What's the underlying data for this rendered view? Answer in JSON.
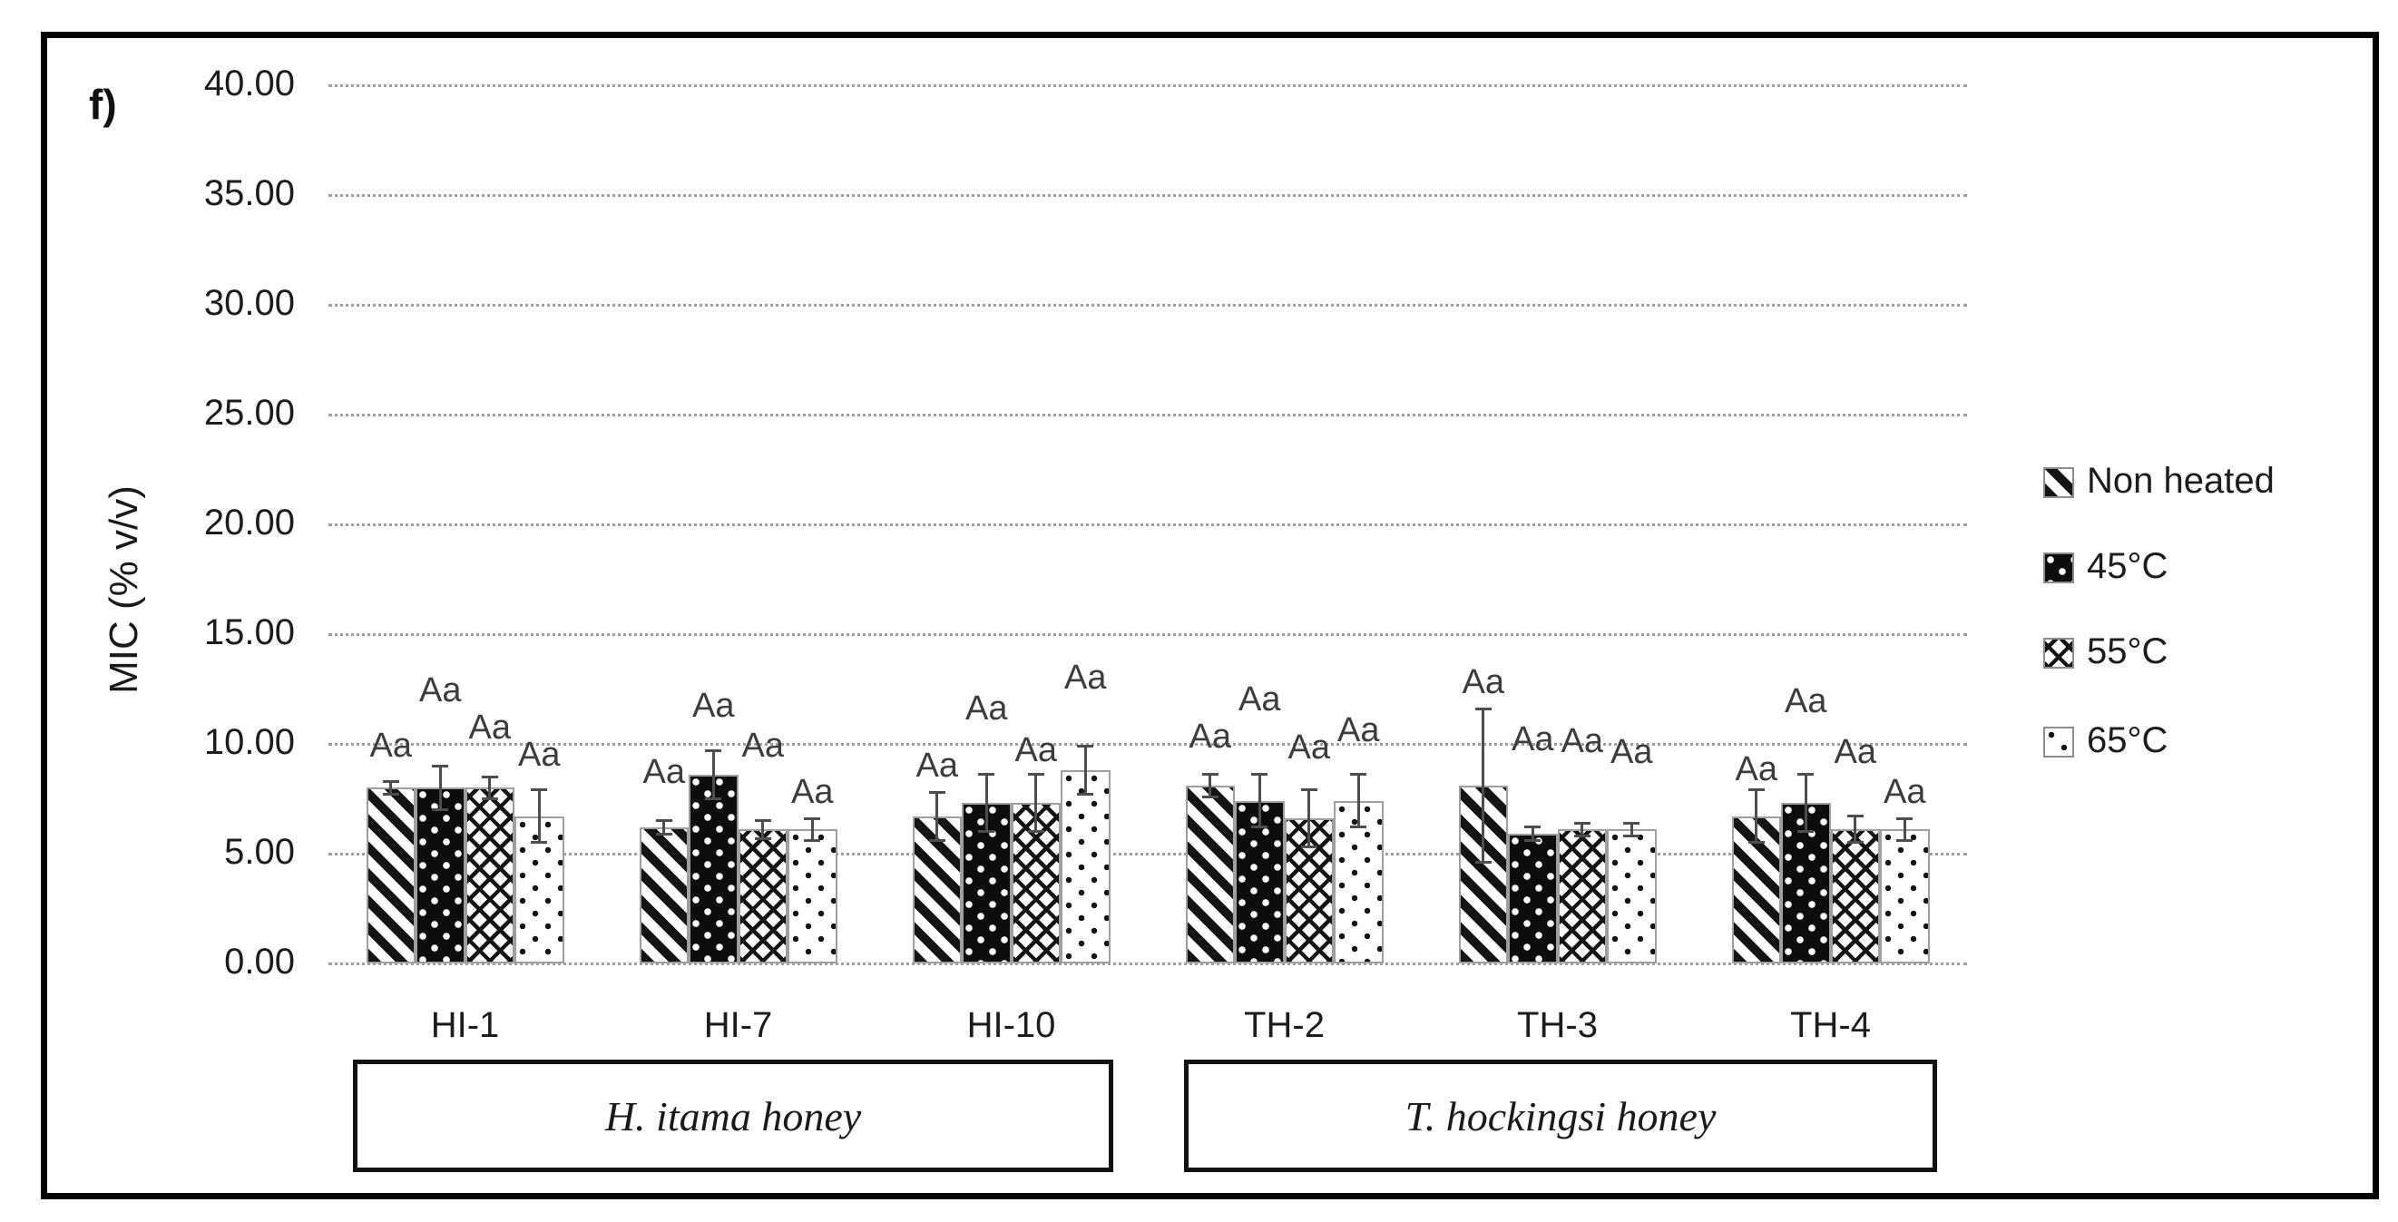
{
  "panel_label": "f)",
  "colors": {
    "background": "#ffffff",
    "border": "#000000",
    "grid": "#9e9e9e",
    "bar_border": "#9f9f9f",
    "bar_ink": "#141414",
    "error_bar": "#4d4d4d",
    "text": "#1c1c1c"
  },
  "chart_data": {
    "type": "bar",
    "title": "",
    "xlabel": "",
    "ylabel": "MIC (% v/v)",
    "ylim": [
      0,
      40
    ],
    "ytick_step": 5,
    "ytick_labels": [
      "0.00",
      "5.00",
      "10.00",
      "15.00",
      "20.00",
      "25.00",
      "30.00",
      "35.00",
      "40.00"
    ],
    "grid": "horizontal-dotted",
    "legend_position": "right",
    "categories": [
      "HI-1",
      "HI-7",
      "HI-10",
      "TH-2",
      "TH-3",
      "TH-4"
    ],
    "category_groups": [
      {
        "label": "H. itama honey",
        "categories": [
          "HI-1",
          "HI-7",
          "HI-10"
        ]
      },
      {
        "label": "T. hockingsi honey",
        "categories": [
          "TH-2",
          "TH-3",
          "TH-4"
        ]
      }
    ],
    "series": [
      {
        "name": "Non heated",
        "pattern": "diagonal-stripes",
        "values": [
          8.0,
          6.2,
          6.7,
          8.1,
          8.1,
          6.7
        ],
        "errors": [
          0.3,
          0.3,
          1.1,
          0.5,
          3.5,
          1.2
        ],
        "sig_labels": [
          "Aa",
          "Aa",
          "Aa",
          "Aa",
          "Aa",
          "Aa"
        ],
        "sig_label_y": [
          9.8,
          8.6,
          8.9,
          10.2,
          12.7,
          8.7
        ]
      },
      {
        "name": "45°C",
        "pattern": "black-white-dots",
        "values": [
          8.0,
          8.6,
          7.3,
          7.4,
          5.9,
          7.3
        ],
        "errors": [
          1.0,
          1.1,
          1.3,
          1.2,
          0.3,
          1.3
        ],
        "sig_labels": [
          "Aa",
          "Aa",
          "Aa",
          "Aa",
          "Aa",
          "Aa"
        ],
        "sig_label_y": [
          12.3,
          11.6,
          11.5,
          11.9,
          10.1,
          11.8
        ]
      },
      {
        "name": "55°C",
        "pattern": "crosshatch",
        "values": [
          8.0,
          6.1,
          7.3,
          6.6,
          6.1,
          6.1
        ],
        "errors": [
          0.5,
          0.4,
          1.3,
          1.3,
          0.3,
          0.6
        ],
        "sig_labels": [
          "Aa",
          "Aa",
          "Aa",
          "Aa",
          "Aa",
          "Aa"
        ],
        "sig_label_y": [
          10.6,
          9.8,
          9.6,
          9.7,
          10.0,
          9.5
        ]
      },
      {
        "name": "65°C",
        "pattern": "white-black-dots",
        "values": [
          6.7,
          6.1,
          8.8,
          7.4,
          6.1,
          6.1
        ],
        "errors": [
          1.2,
          0.5,
          1.1,
          1.2,
          0.3,
          0.5
        ],
        "sig_labels": [
          "Aa",
          "Aa",
          "Aa",
          "Aa",
          "Aa",
          "Aa"
        ],
        "sig_label_y": [
          9.4,
          7.7,
          12.9,
          10.5,
          9.5,
          7.7
        ]
      }
    ]
  }
}
